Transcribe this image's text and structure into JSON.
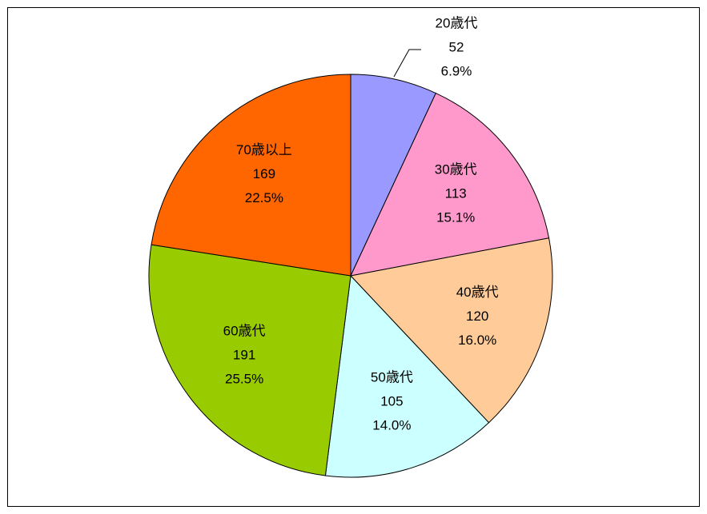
{
  "chart_data": {
    "type": "pie",
    "categories": [
      "20歳代",
      "30歳代",
      "40歳代",
      "50歳代",
      "60歳代",
      "70歳以上"
    ],
    "values": [
      52,
      113,
      120,
      105,
      191,
      169
    ],
    "percent_labels": [
      "6.9%",
      "15.1%",
      "16.0%",
      "14.0%",
      "25.5%",
      "22.5%"
    ],
    "colors": [
      "#9999ff",
      "#ff99cc",
      "#ffcc99",
      "#ccffff",
      "#99cc00",
      "#ff6600"
    ]
  }
}
